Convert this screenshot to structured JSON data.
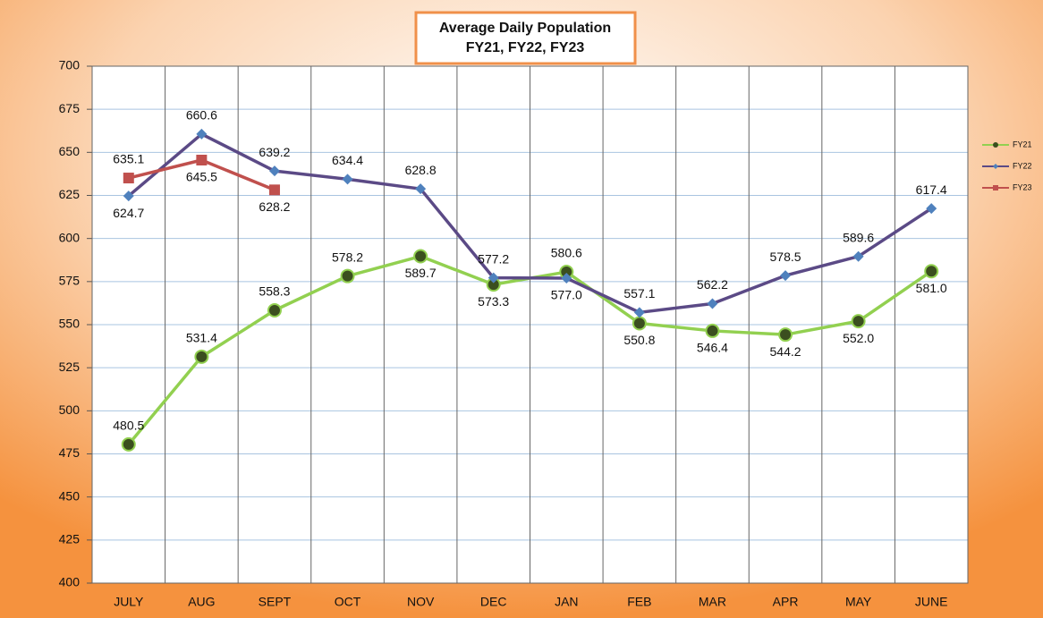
{
  "chart_data": {
    "type": "line",
    "title": "Average Daily Population",
    "subtitle": "FY21, FY22, FY23",
    "categories": [
      "JULY",
      "AUG",
      "SEPT",
      "OCT",
      "NOV",
      "DEC",
      "JAN",
      "FEB",
      "MAR",
      "APR",
      "MAY",
      "JUNE"
    ],
    "series": [
      {
        "name": "FY21",
        "color": "#92d050",
        "marker": "circle",
        "marker_color": "#3b4f1f",
        "values": [
          480.5,
          531.4,
          558.3,
          578.2,
          589.7,
          573.3,
          580.6,
          550.8,
          546.4,
          544.2,
          552.0,
          581.0
        ],
        "value_labels": [
          "480.5",
          "531.4",
          "558.3",
          "578.2",
          "589.7",
          "573.3",
          "580.6",
          "550.8",
          "546.4",
          "544.2",
          "552.0",
          "581.0"
        ]
      },
      {
        "name": "FY22",
        "color": "#5b4a86",
        "marker": "diamond",
        "marker_color": "#4f81bd",
        "values": [
          624.7,
          660.6,
          639.2,
          634.4,
          628.8,
          577.2,
          577.0,
          557.1,
          562.2,
          578.5,
          589.6,
          617.4
        ],
        "value_labels": [
          "624.7",
          "660.6",
          "639.2",
          "634.4",
          "628.8",
          "577.2",
          "577.0",
          "557.1",
          "562.2",
          "578.5",
          "589.6",
          "617.4"
        ]
      },
      {
        "name": "FY23",
        "color": "#c0504d",
        "marker": "square",
        "marker_color": "#c0504d",
        "values": [
          635.1,
          645.5,
          628.2,
          null,
          null,
          null,
          null,
          null,
          null,
          null,
          null,
          null
        ],
        "value_labels": [
          "635.1",
          "645.5",
          "628.2",
          null,
          null,
          null,
          null,
          null,
          null,
          null,
          null,
          null
        ]
      }
    ],
    "ylim": [
      400,
      700
    ],
    "yticks": [
      400,
      425,
      450,
      475,
      500,
      525,
      550,
      575,
      600,
      625,
      650,
      675,
      700
    ],
    "grid": true,
    "legend": "right"
  }
}
